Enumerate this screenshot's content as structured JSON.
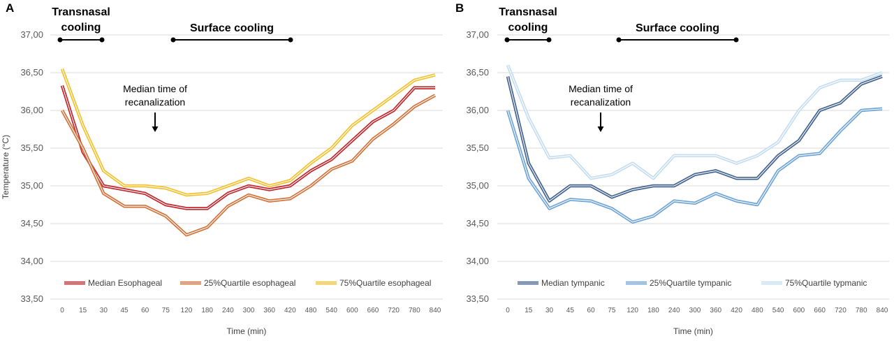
{
  "chart_data": [
    {
      "type": "line",
      "panel": "A",
      "x_categories": [
        "0",
        "15",
        "30",
        "45",
        "60",
        "75",
        "120",
        "180",
        "240",
        "300",
        "360",
        "420",
        "480",
        "540",
        "600",
        "660",
        "720",
        "780",
        "840"
      ],
      "xlabel": "Time (min)",
      "ylabel": "Temperature (°C)",
      "ylim": [
        33.5,
        37.0
      ],
      "yticks": [
        "33,50",
        "34,00",
        "34,50",
        "35,00",
        "35,50",
        "36,00",
        "36,50",
        "37,00"
      ],
      "grid": true,
      "legend_position": "bottom",
      "annotations": {
        "transnasal": [
          "Transnasal",
          "cooling"
        ],
        "surface": "Surface cooling",
        "recanalization": [
          "Median time of",
          "recanalization"
        ]
      },
      "series": [
        {
          "name": "Median Esophageal",
          "color": "#c0282d",
          "values": [
            36.33,
            35.45,
            35.0,
            34.95,
            34.9,
            34.75,
            34.7,
            34.7,
            34.9,
            35.0,
            34.95,
            35.0,
            35.2,
            35.35,
            35.6,
            35.85,
            36.0,
            36.3,
            36.3
          ]
        },
        {
          "name": "25%Quartile esophageal",
          "color": "#d2733c",
          "values": [
            36.0,
            35.5,
            34.9,
            34.73,
            34.73,
            34.6,
            34.35,
            34.45,
            34.73,
            34.88,
            34.8,
            34.83,
            35.0,
            35.22,
            35.33,
            35.62,
            35.82,
            36.05,
            36.2
          ]
        },
        {
          "name": "75%Quartile esophageal",
          "color": "#f2c12e",
          "values": [
            36.55,
            35.8,
            35.2,
            35.0,
            35.0,
            34.97,
            34.88,
            34.9,
            35.0,
            35.1,
            35.0,
            35.07,
            35.3,
            35.5,
            35.8,
            36.0,
            36.2,
            36.4,
            36.47
          ]
        }
      ]
    },
    {
      "type": "line",
      "panel": "B",
      "x_categories": [
        "0",
        "15",
        "30",
        "45",
        "60",
        "75",
        "120",
        "180",
        "240",
        "300",
        "360",
        "420",
        "480",
        "540",
        "600",
        "660",
        "720",
        "780",
        "840"
      ],
      "xlabel": "Time (min)",
      "ylabel": "",
      "ylim": [
        33.5,
        37.0
      ],
      "yticks": [
        "33,50",
        "34,00",
        "34,50",
        "35,00",
        "35,50",
        "36,00",
        "36,50",
        "37,00"
      ],
      "grid": true,
      "legend_position": "bottom",
      "annotations": {
        "transnasal": [
          "Transnasal",
          "cooling"
        ],
        "surface": "Surface cooling",
        "recanalization": [
          "Median time of",
          "recanalization"
        ]
      },
      "series": [
        {
          "name": "Median tympanic",
          "color": "#44648f",
          "values": [
            36.45,
            35.3,
            34.8,
            35.0,
            35.0,
            34.85,
            34.95,
            35.0,
            35.0,
            35.15,
            35.2,
            35.1,
            35.1,
            35.4,
            35.6,
            36.0,
            36.1,
            36.35,
            36.45
          ]
        },
        {
          "name": "25%Quartile tympanic",
          "color": "#6fa4d6",
          "values": [
            36.0,
            35.1,
            34.7,
            34.82,
            34.8,
            34.7,
            34.52,
            34.6,
            34.8,
            34.77,
            34.9,
            34.8,
            34.75,
            35.2,
            35.4,
            35.43,
            35.73,
            36.0,
            36.02
          ]
        },
        {
          "name": "75%Quartile typmanic",
          "color": "#c5ddf1",
          "values": [
            36.6,
            35.9,
            35.37,
            35.4,
            35.1,
            35.15,
            35.3,
            35.1,
            35.4,
            35.4,
            35.4,
            35.3,
            35.4,
            35.58,
            36.0,
            36.3,
            36.4,
            36.4,
            36.5
          ]
        }
      ]
    }
  ]
}
